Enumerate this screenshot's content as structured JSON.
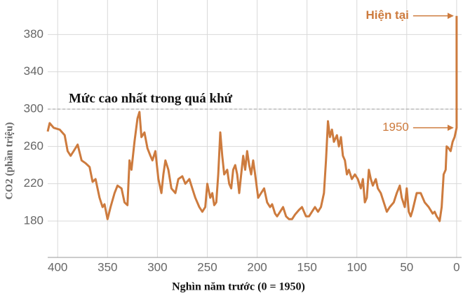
{
  "chart_data": {
    "type": "line",
    "y_label": "CO2 (phần triệu)",
    "x_label": "Nghìn năm trước (0 = 1950)",
    "xlim": [
      410,
      -5
    ],
    "ylim": [
      141,
      417
    ],
    "xticks": [
      400,
      350,
      300,
      250,
      200,
      150,
      100,
      50,
      0
    ],
    "yticks": [
      180,
      220,
      260,
      300,
      340,
      380
    ],
    "grid": true,
    "reference_line": {
      "value": 300,
      "label": "Mức cao nhất trong quá khứ"
    },
    "annotations": [
      {
        "text": "Hiện tại",
        "x": 0,
        "y": 400
      },
      {
        "text": "1950",
        "x": 0,
        "y": 280
      }
    ],
    "x": [
      410,
      408,
      404,
      398,
      393,
      390,
      387,
      384,
      380,
      376,
      372,
      368,
      365,
      362,
      358,
      355,
      353,
      350,
      347,
      343,
      340,
      336,
      333,
      330,
      328,
      326,
      323,
      320,
      318,
      316,
      313,
      310,
      307,
      305,
      302,
      299,
      296,
      294,
      292,
      289,
      286,
      282,
      279,
      275,
      272,
      268,
      265,
      262,
      258,
      255,
      252,
      250,
      247,
      245,
      243,
      241,
      239,
      237,
      235,
      233,
      230,
      228,
      226,
      224,
      222,
      220,
      218,
      216,
      214,
      212,
      210,
      208,
      206,
      204,
      202,
      199,
      196,
      193,
      190,
      187,
      185,
      182,
      180,
      177,
      174,
      171,
      168,
      165,
      162,
      158,
      155,
      151,
      148,
      145,
      142,
      139,
      136,
      133,
      131,
      129,
      127,
      125,
      123,
      120,
      118,
      116,
      114,
      112,
      110,
      108,
      105,
      102,
      99,
      96,
      94,
      92,
      90,
      88,
      86,
      84,
      81,
      79,
      76,
      73,
      70,
      67,
      63,
      60,
      57,
      55,
      52,
      50,
      48,
      46,
      44,
      40,
      36,
      32,
      28,
      24,
      22,
      20,
      18,
      17,
      15,
      13,
      11,
      10,
      8,
      6,
      4,
      2,
      0,
      0
    ],
    "series": [
      {
        "name": "CO2",
        "color": "#cd7b3e",
        "values": [
          276,
          285,
          280,
          278,
          272,
          255,
          250,
          255,
          262,
          245,
          242,
          238,
          222,
          225,
          205,
          195,
          198,
          182,
          195,
          210,
          218,
          215,
          200,
          197,
          245,
          235,
          265,
          290,
          297,
          270,
          275,
          258,
          250,
          245,
          255,
          225,
          210,
          230,
          245,
          235,
          215,
          210,
          225,
          228,
          220,
          225,
          215,
          205,
          195,
          190,
          195,
          220,
          205,
          210,
          197,
          200,
          230,
          275,
          250,
          230,
          235,
          220,
          215,
          235,
          240,
          230,
          210,
          230,
          250,
          235,
          255,
          240,
          230,
          245,
          230,
          205,
          210,
          215,
          200,
          195,
          198,
          188,
          185,
          190,
          195,
          185,
          182,
          182,
          187,
          192,
          195,
          185,
          185,
          190,
          195,
          190,
          195,
          210,
          245,
          287,
          270,
          278,
          265,
          272,
          260,
          270,
          250,
          245,
          230,
          235,
          225,
          230,
          225,
          215,
          225,
          200,
          205,
          235,
          225,
          218,
          225,
          215,
          210,
          200,
          190,
          195,
          200,
          210,
          218,
          205,
          195,
          215,
          190,
          185,
          192,
          210,
          210,
          200,
          195,
          188,
          190,
          185,
          182,
          180,
          195,
          230,
          235,
          260,
          258,
          255,
          265,
          270,
          280,
          400
        ]
      }
    ]
  }
}
